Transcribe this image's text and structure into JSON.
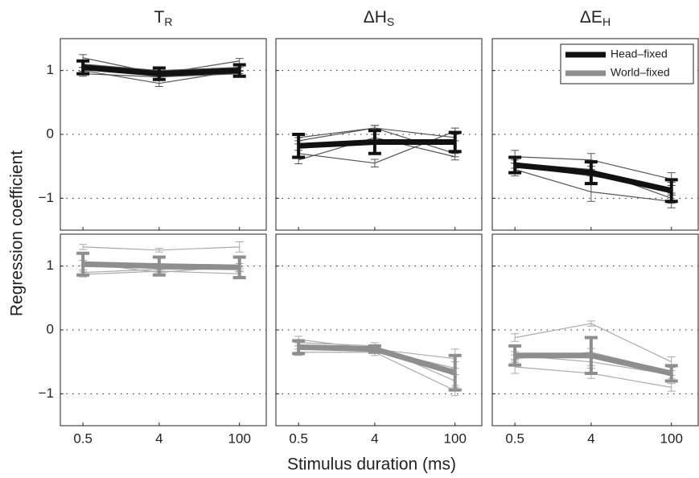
{
  "ylabel": "Regression coefficient",
  "xlabel": "Stimulus duration (ms)",
  "categories": [
    "0.5",
    "4",
    "100"
  ],
  "ylim": [
    -1.5,
    1.5
  ],
  "yticks": [
    {
      "value": -1,
      "label": "−1"
    },
    0,
    1
  ],
  "grid": true,
  "legend": {
    "corner": "upper right",
    "entries": [
      {
        "name": "Head–fixed",
        "color": "#111111"
      },
      {
        "name": "World–fixed",
        "color": "#8e8e8e"
      }
    ]
  },
  "chart_data": [
    {
      "type": "line",
      "title": {
        "main": "T",
        "sub": "R"
      },
      "series": [
        {
          "color": "#555555",
          "values": [
            1.2,
            0.95,
            1.15
          ],
          "errors": [
            0.05,
            0.05,
            0.04
          ]
        },
        {
          "color": "#555555",
          "values": [
            1.0,
            0.8,
            1.0
          ],
          "errors": [
            0.05,
            0.05,
            0.05
          ]
        },
        {
          "color": "#555555",
          "values": [
            1.1,
            1.0,
            1.05
          ],
          "errors": [
            0.05,
            0.04,
            0.05
          ]
        },
        {
          "color": "#555555",
          "values": [
            0.95,
            0.9,
            0.95
          ],
          "errors": [
            0.04,
            0.04,
            0.04
          ]
        },
        {
          "color": "#111111",
          "thick": true,
          "values": [
            1.05,
            0.95,
            1.0
          ],
          "errors": [
            0.1,
            0.09,
            0.09
          ]
        }
      ]
    },
    {
      "type": "line",
      "title": {
        "main": "ΔH",
        "sub": "S"
      },
      "series": [
        {
          "color": "#555555",
          "values": [
            -0.05,
            0.1,
            -0.05
          ],
          "errors": [
            0.05,
            0.04,
            0.05
          ]
        },
        {
          "color": "#555555",
          "values": [
            -0.4,
            -0.05,
            -0.35
          ],
          "errors": [
            0.06,
            0.05,
            0.05
          ]
        },
        {
          "color": "#555555",
          "values": [
            -0.3,
            -0.45,
            0.05
          ],
          "errors": [
            0.05,
            0.06,
            0.05
          ]
        },
        {
          "color": "#555555",
          "values": [
            -0.1,
            0.1,
            -0.3
          ],
          "errors": [
            0.05,
            0.04,
            0.05
          ]
        },
        {
          "color": "#111111",
          "thick": true,
          "values": [
            -0.18,
            -0.12,
            -0.12
          ],
          "errors": [
            0.18,
            0.18,
            0.15
          ]
        }
      ]
    },
    {
      "type": "line",
      "title": {
        "main": "ΔE",
        "sub": "H"
      },
      "series": [
        {
          "color": "#555555",
          "values": [
            -0.35,
            -0.4,
            -0.7
          ],
          "errors": [
            0.1,
            0.1,
            0.1
          ]
        },
        {
          "color": "#555555",
          "values": [
            -0.55,
            -0.9,
            -1.05
          ],
          "errors": [
            0.1,
            0.15,
            0.1
          ]
        },
        {
          "color": "#555555",
          "values": [
            -0.45,
            -0.55,
            -1.0
          ],
          "errors": [
            0.08,
            0.1,
            0.08
          ]
        },
        {
          "color": "#555555",
          "values": [
            -0.5,
            -0.65,
            -0.85
          ],
          "errors": [
            0.1,
            0.1,
            0.1
          ]
        },
        {
          "color": "#111111",
          "thick": true,
          "values": [
            -0.48,
            -0.6,
            -0.88
          ],
          "errors": [
            0.12,
            0.17,
            0.17
          ]
        }
      ]
    },
    {
      "type": "line",
      "series": [
        {
          "color": "#aaaaaa",
          "values": [
            1.3,
            1.25,
            1.3
          ],
          "errors": [
            0.04,
            0.03,
            0.08
          ]
        },
        {
          "color": "#aaaaaa",
          "values": [
            0.9,
            0.95,
            0.95
          ],
          "errors": [
            0.04,
            0.04,
            0.04
          ]
        },
        {
          "color": "#aaaaaa",
          "values": [
            1.05,
            0.9,
            1.0
          ],
          "errors": [
            0.04,
            0.04,
            0.04
          ]
        },
        {
          "color": "#aaaaaa",
          "values": [
            0.87,
            0.92,
            0.88
          ],
          "errors": [
            0.04,
            0.04,
            0.04
          ]
        },
        {
          "color": "#8e8e8e",
          "thick": true,
          "values": [
            1.03,
            1.0,
            0.98
          ],
          "errors": [
            0.17,
            0.14,
            0.16
          ]
        }
      ]
    },
    {
      "type": "line",
      "series": [
        {
          "color": "#aaaaaa",
          "values": [
            -0.15,
            -0.3,
            -0.45
          ],
          "errors": [
            0.05,
            0.05,
            0.15
          ]
        },
        {
          "color": "#aaaaaa",
          "values": [
            -0.35,
            -0.35,
            -0.95
          ],
          "errors": [
            0.05,
            0.05,
            0.08
          ]
        },
        {
          "color": "#aaaaaa",
          "values": [
            -0.2,
            -0.25,
            -0.8
          ],
          "errors": [
            0.05,
            0.05,
            0.1
          ]
        },
        {
          "color": "#aaaaaa",
          "values": [
            -0.3,
            -0.3,
            -0.6
          ],
          "errors": [
            0.05,
            0.05,
            0.1
          ]
        },
        {
          "color": "#8e8e8e",
          "thick": true,
          "values": [
            -0.27,
            -0.3,
            -0.67
          ],
          "errors": [
            0.1,
            0.05,
            0.27
          ]
        }
      ]
    },
    {
      "type": "line",
      "series": [
        {
          "color": "#aaaaaa",
          "values": [
            -0.12,
            0.1,
            -0.5
          ],
          "errors": [
            0.06,
            0.04,
            0.08
          ]
        },
        {
          "color": "#aaaaaa",
          "values": [
            -0.58,
            -0.68,
            -0.9
          ],
          "errors": [
            0.1,
            0.08,
            0.06
          ]
        },
        {
          "color": "#aaaaaa",
          "values": [
            -0.4,
            -0.5,
            -0.7
          ],
          "errors": [
            0.06,
            0.06,
            0.06
          ]
        },
        {
          "color": "#aaaaaa",
          "values": [
            -0.45,
            -0.35,
            -0.65
          ],
          "errors": [
            0.06,
            0.06,
            0.06
          ]
        },
        {
          "color": "#8e8e8e",
          "thick": true,
          "values": [
            -0.4,
            -0.4,
            -0.68
          ],
          "errors": [
            0.15,
            0.28,
            0.12
          ]
        }
      ]
    }
  ]
}
